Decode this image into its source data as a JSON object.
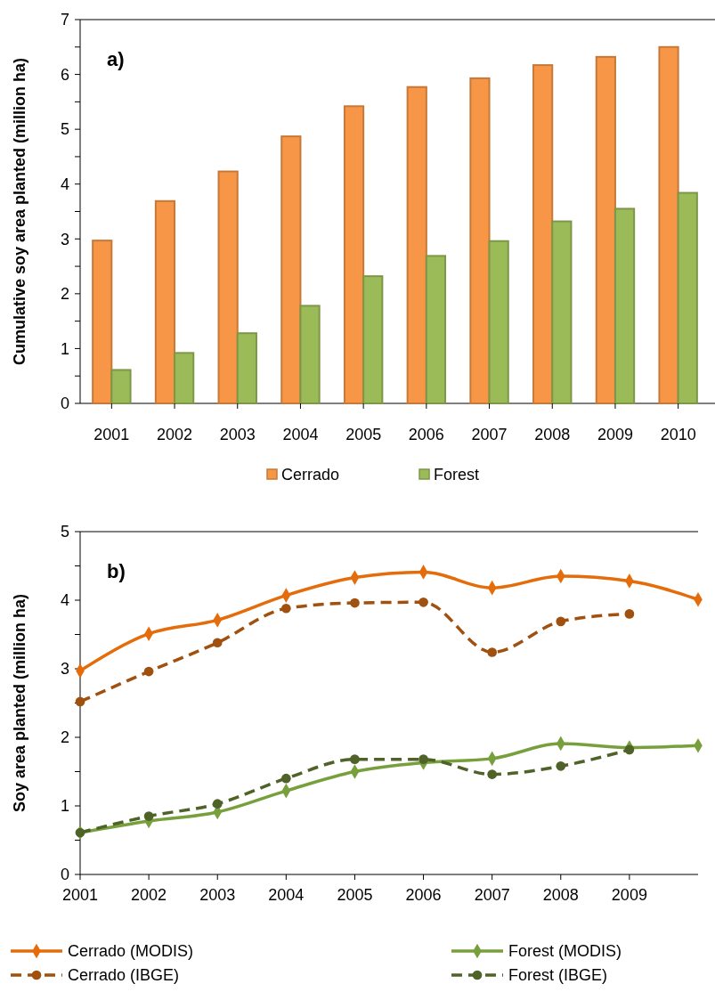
{
  "chart_data": [
    {
      "type": "bar",
      "ylabel": "Cumulative soy area planted (million ha)",
      "annotations": [
        "a)"
      ],
      "categories": [
        "2001",
        "2002",
        "2003",
        "2004",
        "2005",
        "2006",
        "2007",
        "2008",
        "2009",
        "2010"
      ],
      "series": [
        {
          "name": "Cerrado",
          "color": "#f79646",
          "values": [
            2.97,
            3.69,
            4.23,
            4.87,
            5.42,
            5.77,
            5.93,
            6.17,
            6.32,
            6.5
          ]
        },
        {
          "name": "Forest",
          "color": "#9bbb59",
          "values": [
            0.61,
            0.92,
            1.28,
            1.78,
            2.32,
            2.69,
            2.96,
            3.32,
            3.55,
            3.84
          ]
        }
      ],
      "ylim": [
        0,
        7
      ],
      "yticks": [
        0,
        {
          "value": 0.5,
          "label": null
        },
        1,
        {
          "value": 1.5,
          "label": null
        },
        2,
        {
          "value": 2.5,
          "label": null
        },
        3,
        {
          "value": 3.5,
          "label": null
        },
        4,
        {
          "value": 4.5,
          "label": null
        },
        5,
        {
          "value": 5.5,
          "label": null
        },
        6,
        {
          "value": 6.5,
          "label": null
        },
        7
      ],
      "grid": false,
      "legend": "bottom"
    },
    {
      "type": "line",
      "ylabel": "Soy area planted (million ha)",
      "annotations": [
        "b)"
      ],
      "x": [
        2001,
        2002,
        2003,
        2004,
        2005,
        2006,
        2007,
        2008,
        2009,
        2010
      ],
      "series": [
        {
          "name": "Cerrado (MODIS)",
          "color": "#e46c0a",
          "marker": "diamond",
          "line_style": "solid",
          "values": [
            2.97,
            3.51,
            3.71,
            4.07,
            4.33,
            4.41,
            4.18,
            4.35,
            4.28,
            4.01
          ]
        },
        {
          "name": "Forest (MODIS)",
          "color": "#77a03c",
          "marker": "diamond",
          "line_style": "solid",
          "values": [
            0.61,
            0.78,
            0.91,
            1.22,
            1.5,
            1.63,
            1.69,
            1.91,
            1.85,
            1.88
          ]
        },
        {
          "name": "Cerrado (IBGE)",
          "color": "#a0500f",
          "marker": "circle",
          "line_style": "dashed",
          "values": [
            2.52,
            2.96,
            3.38,
            3.88,
            3.96,
            3.97,
            3.24,
            3.69,
            3.8,
            null
          ]
        },
        {
          "name": "Forest (IBGE)",
          "color": "#4f6228",
          "marker": "circle",
          "line_style": "dashed",
          "values": [
            0.61,
            0.85,
            1.03,
            1.4,
            1.68,
            1.68,
            1.46,
            1.58,
            1.82,
            null
          ]
        }
      ],
      "xlim": [
        2001,
        2010
      ],
      "xticks": [
        2001,
        2002,
        2003,
        2004,
        2005,
        2006,
        2007,
        2008,
        2009
      ],
      "ylim": [
        0,
        5
      ],
      "yticks": [
        0,
        {
          "value": 0.5,
          "label": null
        },
        1,
        {
          "value": 1.5,
          "label": null
        },
        2,
        {
          "value": 2.5,
          "label": null
        },
        3,
        {
          "value": 3.5,
          "label": null
        },
        4,
        {
          "value": 4.5,
          "label": null
        },
        5
      ],
      "grid": false,
      "legend": "bottom"
    }
  ]
}
